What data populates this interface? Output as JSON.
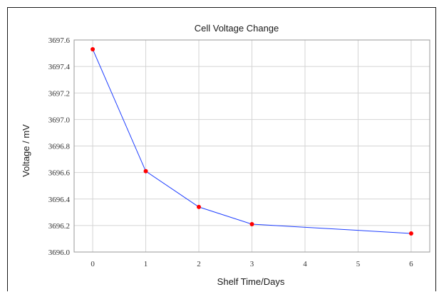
{
  "chart_data": {
    "type": "line",
    "title": "Cell Voltage Change",
    "xlabel": "Shelf Time/Days",
    "ylabel": "Voltage / mV",
    "x": [
      0,
      1,
      2,
      3,
      4,
      5,
      6
    ],
    "x_ticks": [
      "0",
      "1",
      "2",
      "3",
      "4",
      "5",
      "6"
    ],
    "y_ticks": [
      "3696.0",
      "3696.2",
      "3696.4",
      "3696.6",
      "3696.8",
      "3697.0",
      "3697.2",
      "3697.4",
      "3697.6"
    ],
    "xlim": [
      -0.35,
      6.35
    ],
    "ylim": [
      3696.0,
      3697.6
    ],
    "grid": true,
    "series": [
      {
        "x": [
          0,
          1,
          2,
          3,
          6
        ],
        "values": [
          3697.53,
          3696.61,
          3696.34,
          3696.21,
          3696.14
        ],
        "line_color": "#1f3fff",
        "marker_color": "#ff0000"
      }
    ]
  }
}
